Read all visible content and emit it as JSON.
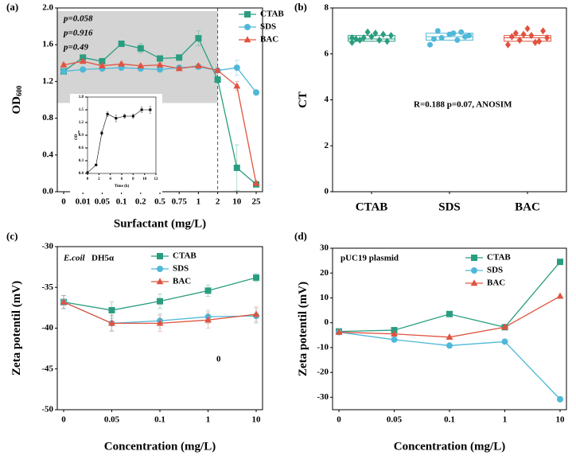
{
  "chart_data": [
    {
      "type": "line",
      "panel_label": "(a)",
      "x_label": "Surfactant (mg/L)",
      "y_label": "OD",
      "y_label_sub": "600",
      "categories": [
        "0",
        "0.01",
        "0.05",
        "0.1",
        "0.2",
        "0.5",
        "0.75",
        "1",
        "2",
        "10",
        "25"
      ],
      "ylim": [
        0,
        2
      ],
      "yticks": [
        {
          "value": 0,
          "label": "0.0"
        },
        0.4,
        0.8,
        1.2,
        1.6,
        {
          "value": 2,
          "label": "2.0"
        }
      ],
      "legend": "upper right",
      "annotations": [
        {
          "text": "p=0.058",
          "color": "#2a9d80"
        },
        {
          "text": "p=0.916",
          "color": "#4fb8d8"
        },
        {
          "text": "p=0.49",
          "color": "#e0533f"
        }
      ],
      "series": [
        {
          "name": "CTAB",
          "color": "#2a9d80",
          "marker": "square",
          "values": [
            1.31,
            1.46,
            1.42,
            1.61,
            1.56,
            1.45,
            1.46,
            1.67,
            1.22,
            0.26,
            0.08
          ],
          "errors": [
            0.02,
            0.03,
            0.02,
            0.03,
            0.05,
            0.02,
            0.02,
            0.08,
            0.03,
            0.25,
            0.03
          ]
        },
        {
          "name": "SDS",
          "color": "#4fb8d8",
          "marker": "circle",
          "values": [
            1.31,
            1.33,
            1.34,
            1.35,
            1.34,
            1.33,
            1.35,
            1.36,
            1.32,
            1.35,
            1.08
          ],
          "errors": [
            0.02,
            0.02,
            0.02,
            0.02,
            0.02,
            0.02,
            0.02,
            0.02,
            0.02,
            0.08,
            0.02
          ]
        },
        {
          "name": "BAC",
          "color": "#e0533f",
          "marker": "triangle",
          "values": [
            1.38,
            1.42,
            1.37,
            1.39,
            1.37,
            1.38,
            1.34,
            1.37,
            1.32,
            1.15,
            0.09
          ],
          "errors": [
            0.02,
            0.02,
            0.02,
            0.02,
            0.02,
            0.02,
            0.02,
            0.02,
            0.02,
            0.05,
            0.02
          ]
        }
      ]
    },
    {
      "type": "line",
      "x_label": "Time (h)",
      "y_label": "OD",
      "y_label_sub": "600",
      "x": [
        0,
        1.5,
        2.5,
        3.5,
        5,
        6.5,
        8,
        9.5,
        11
      ],
      "xlim": [
        0,
        12
      ],
      "xticks": [
        0,
        2,
        4,
        6,
        8,
        10,
        12
      ],
      "ylim": [
        0,
        1.8
      ],
      "yticks": [
        {
          "value": 0,
          "label": "0.0"
        },
        0.3,
        0.6,
        0.9,
        1.2,
        1.5,
        1.8
      ],
      "series": [
        {
          "color": "#000000",
          "marker": "square",
          "values": [
            0.02,
            0.2,
            0.95,
            1.4,
            1.3,
            1.35,
            1.35,
            1.5,
            1.5
          ],
          "errors": [
            0.01,
            0.02,
            0.05,
            0.06,
            0.08,
            0.05,
            0.05,
            0.07,
            0.08
          ]
        }
      ]
    },
    {
      "type": "box",
      "panel_label": "(b)",
      "y_label": "CT",
      "categories": [
        "CTAB",
        "SDS",
        "BAC"
      ],
      "ylim": [
        0,
        8
      ],
      "yticks": [
        0,
        2,
        4,
        6,
        8
      ],
      "annotations": [
        {
          "text": "R=0.188 p=0.07, ANOSIM",
          "color": "#000000"
        }
      ],
      "series": [
        {
          "color": "#2a9d80",
          "marker": "diamond",
          "q1": 6.55,
          "median": 6.65,
          "q3": 6.8,
          "values": [
            6.5,
            6.6,
            6.7,
            6.8,
            6.9,
            6.6,
            6.55,
            6.75,
            6.65,
            6.85,
            6.95,
            6.7
          ]
        },
        {
          "color": "#4fb8d8",
          "marker": "circle",
          "q1": 6.6,
          "median": 6.75,
          "q3": 6.9,
          "values": [
            6.4,
            6.6,
            6.7,
            6.8,
            6.9,
            7.0,
            6.75,
            6.85,
            6.65,
            6.95
          ]
        },
        {
          "color": "#e0533f",
          "marker": "diamond",
          "q1": 6.55,
          "median": 6.7,
          "q3": 6.8,
          "values": [
            6.4,
            6.5,
            6.6,
            6.7,
            6.8,
            6.9,
            7.0,
            7.1,
            6.75,
            6.55,
            6.85
          ]
        }
      ]
    },
    {
      "type": "line",
      "panel_label": "(c)",
      "x_label": "Concentration (mg/L)",
      "y_label": "Zeta potentil (mV)",
      "categories": [
        "0",
        "0.05",
        "0.1",
        "1",
        "10"
      ],
      "ylim": [
        -50,
        -30
      ],
      "yticks": [
        -50,
        -45,
        -40,
        -35,
        -30
      ],
      "legend": "upper right",
      "annotations": [
        {
          "text": "E.coil",
          "color": "#000000"
        },
        {
          "text": "DH5α",
          "color": "#000000"
        },
        {
          "text": "0",
          "color": "#000000"
        }
      ],
      "series": [
        {
          "name": "CTAB",
          "color": "#2a9d80",
          "marker": "square",
          "values": [
            -36.8,
            -37.8,
            -36.7,
            -35.4,
            -33.8
          ],
          "errors": [
            0.8,
            1.0,
            0.9,
            0.7,
            0.5
          ]
        },
        {
          "name": "SDS",
          "color": "#4fb8d8",
          "marker": "circle",
          "values": [
            -36.8,
            -39.4,
            -39.1,
            -38.6,
            -38.5
          ],
          "errors": [
            0.8,
            0.9,
            0.9,
            0.8,
            0.9
          ]
        },
        {
          "name": "BAC",
          "color": "#e0533f",
          "marker": "triangle",
          "values": [
            -36.8,
            -39.4,
            -39.4,
            -39.0,
            -38.3
          ],
          "errors": [
            0.8,
            1.0,
            1.0,
            1.0,
            0.9
          ]
        }
      ]
    },
    {
      "type": "line",
      "panel_label": "(d)",
      "x_label": "Concentration (mg/L)",
      "y_label": "Zeta potentil (mV)",
      "categories": [
        "0",
        "0.05",
        "0.1",
        "1",
        "10"
      ],
      "ylim": [
        -35,
        30
      ],
      "yticks": [
        -30,
        -20,
        -10,
        0,
        10,
        20,
        30
      ],
      "legend": "upper right",
      "annotations": [
        {
          "text": "pUC19 plasmid",
          "color": "#000000"
        }
      ],
      "series": [
        {
          "name": "CTAB",
          "color": "#2a9d80",
          "marker": "square",
          "values": [
            -3.5,
            -3,
            3.5,
            -1.8,
            24.5
          ]
        },
        {
          "name": "SDS",
          "color": "#4fb8d8",
          "marker": "circle",
          "values": [
            -3.8,
            -6.8,
            -9.2,
            -7.6,
            -30.8
          ]
        },
        {
          "name": "BAC",
          "color": "#e0533f",
          "marker": "triangle",
          "values": [
            -3.8,
            -4.5,
            -5.8,
            -1.8,
            10.7
          ]
        }
      ]
    }
  ]
}
